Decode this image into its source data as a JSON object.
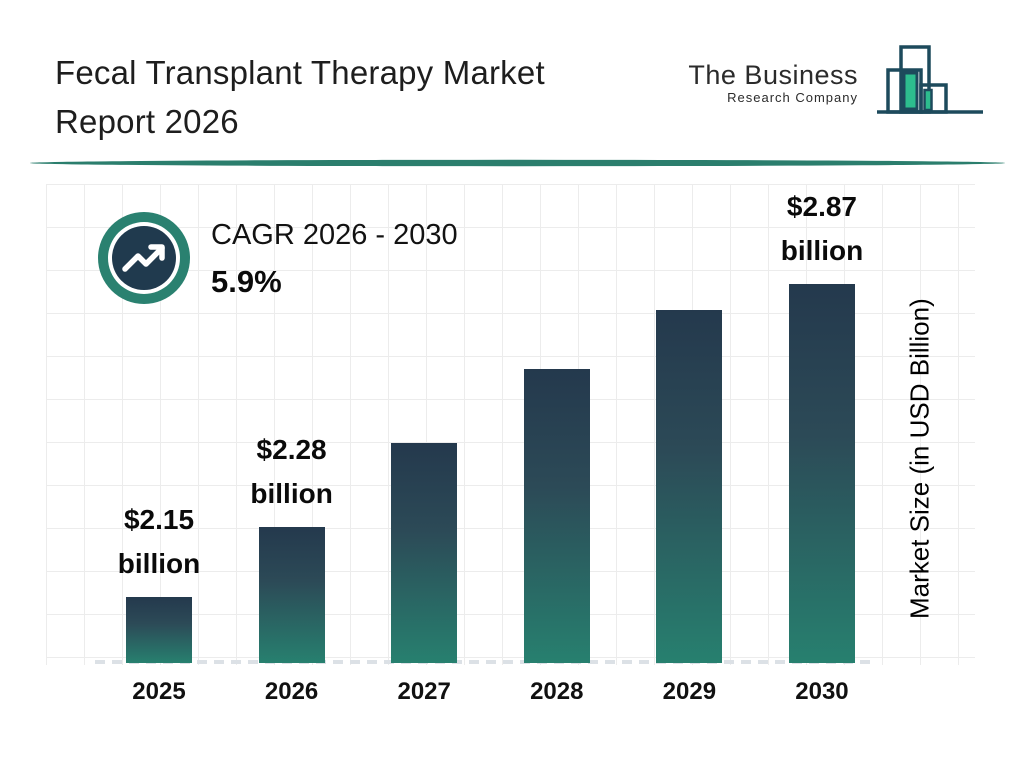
{
  "header": {
    "title_line1": "Fecal Transplant Therapy Market",
    "title_line2": "Report 2026"
  },
  "logo": {
    "name_line1": "The Business",
    "name_line2": "Research Company",
    "outline_color": "#1d4a5c",
    "accent_color": "#2dbd8e"
  },
  "cagr": {
    "label": "CAGR 2026 - 2030",
    "value": "5.9%"
  },
  "colors": {
    "bar_gradient_top": "#24394d",
    "bar_gradient_bottom": "#27806f",
    "divider_teal": "#2b7e6d",
    "badge_ring_teal": "#2a8170",
    "badge_inner_navy": "#203a4e",
    "grid_line": "#ececec",
    "baseline_dash": "#dce1e6"
  },
  "chart_data": {
    "type": "bar",
    "title": "Fecal Transplant Therapy Market Report 2026",
    "categories": [
      "2025",
      "2026",
      "2027",
      "2028",
      "2029",
      "2030"
    ],
    "values": [
      2.15,
      2.28,
      2.41,
      2.56,
      2.71,
      2.87
    ],
    "unit": "USD Billion",
    "bar_value_labels": [
      [
        "$2.15",
        "billion"
      ],
      [
        "$2.28",
        "billion"
      ],
      null,
      null,
      null,
      [
        "$2.87",
        "billion"
      ]
    ],
    "bar_height_pct": [
      13.8,
      28.5,
      46.0,
      61.5,
      73.8,
      81.8
    ],
    "xlabel": "",
    "ylabel": "Market Size (in USD Billion)",
    "grid": true,
    "baseline_style": "dashed",
    "legend": false
  }
}
